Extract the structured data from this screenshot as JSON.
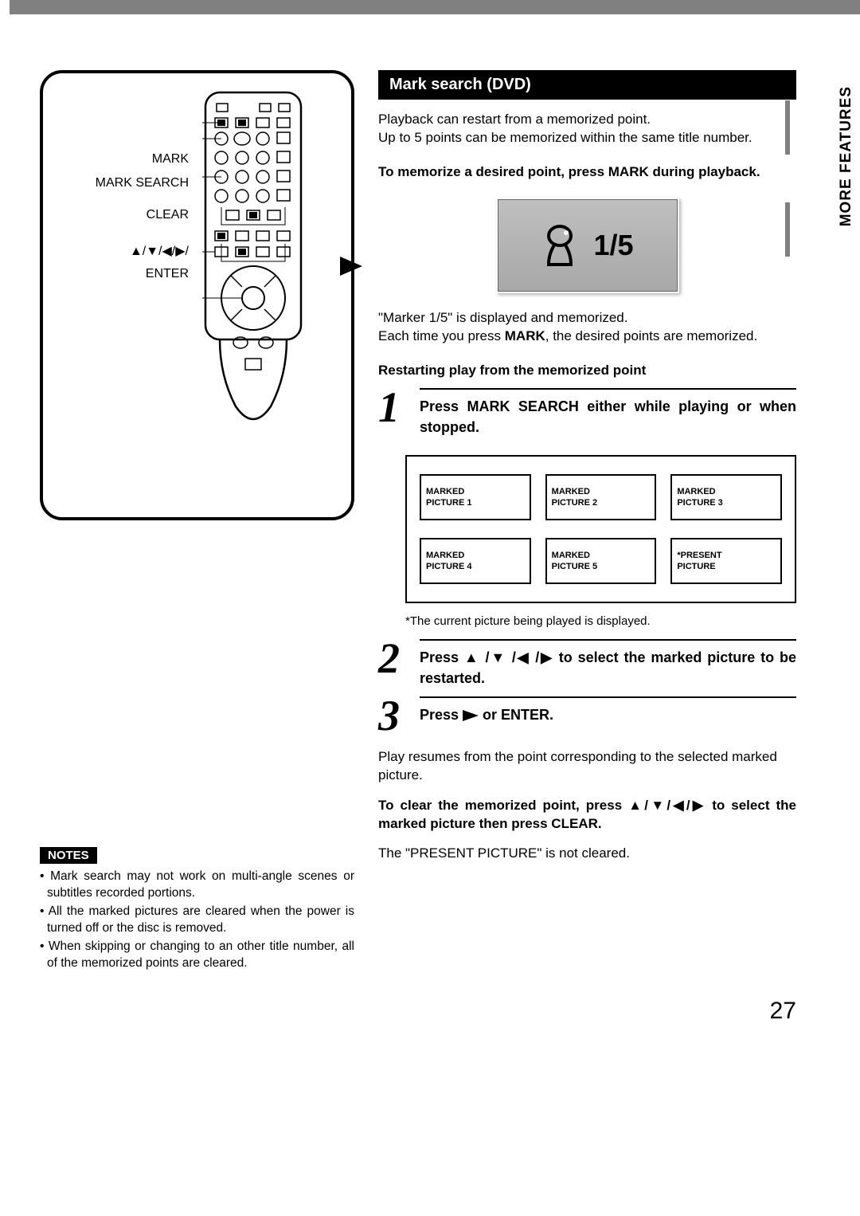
{
  "header_color": "#808080",
  "side_tab": "MORE FEATURES",
  "remote": {
    "labels": [
      "MARK",
      "MARK SEARCH",
      "CLEAR",
      "ENTER"
    ],
    "arrow_label": "▲/▼/◀/▶/"
  },
  "section_title": "Mark search (DVD)",
  "intro_line1": "Playback can restart from a memorized point.",
  "intro_line2": "Up to 5 points can be memorized within the same title number.",
  "memorize_heading": "To memorize a desired point, press MARK during playback.",
  "osd_value": "1/5",
  "marker_line": "\"Marker 1/5\" is displayed and memorized.",
  "each_time_line": "Each time you press MARK, the desired points are memorized.",
  "restart_heading": "Restarting play from the memorized point",
  "steps": [
    {
      "num": "1",
      "text_a": "Press MARK SEARCH either while playing or when stopped."
    },
    {
      "num": "2",
      "text_a": "Press ▲/▼/◀/▶ to select the marked picture to be restarted."
    },
    {
      "num": "3",
      "text_a": "Press ▶ or ENTER."
    }
  ],
  "marked_cells": [
    "MARKED PICTURE 1",
    "MARKED PICTURE 2",
    "MARKED PICTURE 3",
    "MARKED PICTURE 4",
    "MARKED PICTURE 5",
    "*PRESENT PICTURE"
  ],
  "footnote": "*The current picture being played is displayed.",
  "resume_text": "Play resumes from the point corresponding to the selected marked picture.",
  "clear_heading": "To clear the memorized point, press ▲/▼/◀/▶ to select the marked picture then press CLEAR.",
  "present_not_cleared": "The \"PRESENT PICTURE\" is not cleared.",
  "notes_label": "NOTES",
  "notes": [
    "Mark search may not work on multi-angle scenes or subtitles recorded portions.",
    "All the marked pictures are cleared when the power is turned off or the disc is removed.",
    "When skipping or changing to an other title number, all of the memorized points are cleared."
  ],
  "page_number": "27"
}
